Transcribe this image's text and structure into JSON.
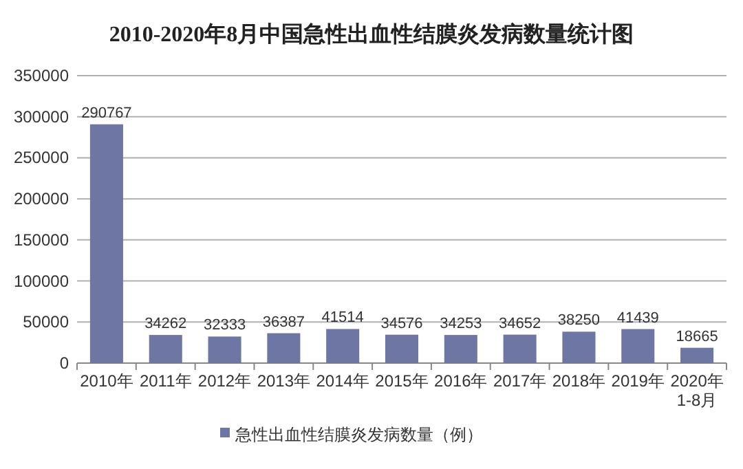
{
  "chart_data": {
    "type": "bar",
    "title": "2010-2020年8月中国急性出血性结膜炎发病数量统计图",
    "categories": [
      "2010年",
      "2011年",
      "2012年",
      "2013年",
      "2014年",
      "2015年",
      "2016年",
      "2017年",
      "2018年",
      "2019年",
      "2020年\n1-8月"
    ],
    "series": [
      {
        "name": "急性出血性结膜炎发病数量（例）",
        "color": "#6e76a3",
        "values": [
          290767,
          34262,
          32333,
          36387,
          41514,
          34576,
          34253,
          34652,
          38250,
          41439,
          18665
        ]
      }
    ],
    "ylim": [
      0,
      350000
    ],
    "yticks": [
      0,
      50000,
      100000,
      150000,
      200000,
      250000,
      300000,
      350000
    ],
    "grid": "y",
    "legend": "bottom",
    "data_labels": true
  }
}
